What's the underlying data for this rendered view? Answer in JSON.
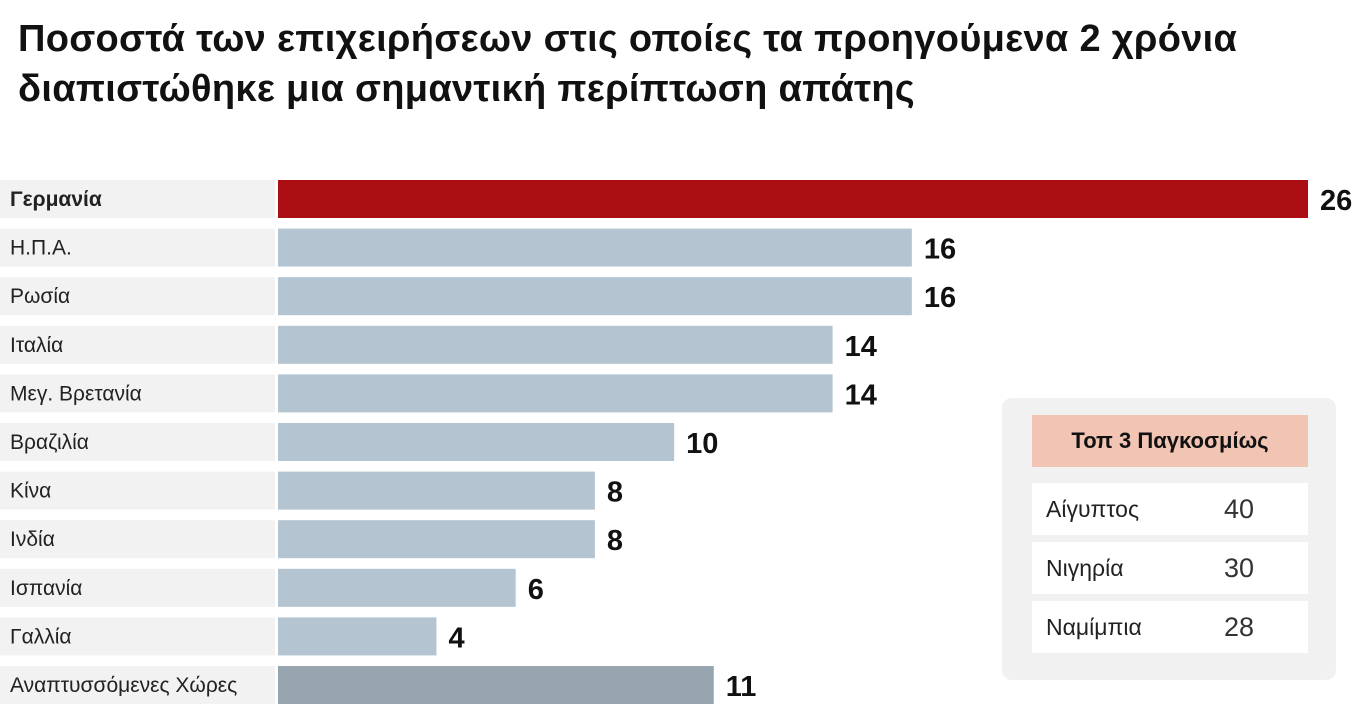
{
  "chart_data": {
    "type": "bar",
    "orientation": "horizontal",
    "title": "Ποσοστά των επιχειρήσεων στις οποίες τα προηγούμενα 2 χρόνια διαπιστώθηκε μια σημαντική περίπτωση απάτης",
    "categories": [
      "Γερμανία",
      "Η.Π.Α.",
      "Ρωσία",
      "Ιταλία",
      "Μεγ. Βρετανία",
      "Βραζιλία",
      "Κίνα",
      "Ινδία",
      "Ισπανία",
      "Γαλλία",
      "Αναπτυσσόμενες Χώρες"
    ],
    "values": [
      26,
      16,
      16,
      14,
      14,
      10,
      8,
      8,
      6,
      4,
      11
    ],
    "highlight_index": 0,
    "aggregate_index": 10,
    "xlim": [
      0,
      26
    ],
    "grid": false,
    "colors": {
      "highlight": "#ab0f13",
      "default": "#b4c5d1",
      "aggregate": "#98a5ae"
    }
  },
  "top3": {
    "header": "Τοπ 3 Παγκοσμίως",
    "items": [
      {
        "name": "Αίγυπτος",
        "value": "40"
      },
      {
        "name": "Νιγηρία",
        "value": "30"
      },
      {
        "name": "Ναμίμπια",
        "value": "28"
      }
    ]
  }
}
